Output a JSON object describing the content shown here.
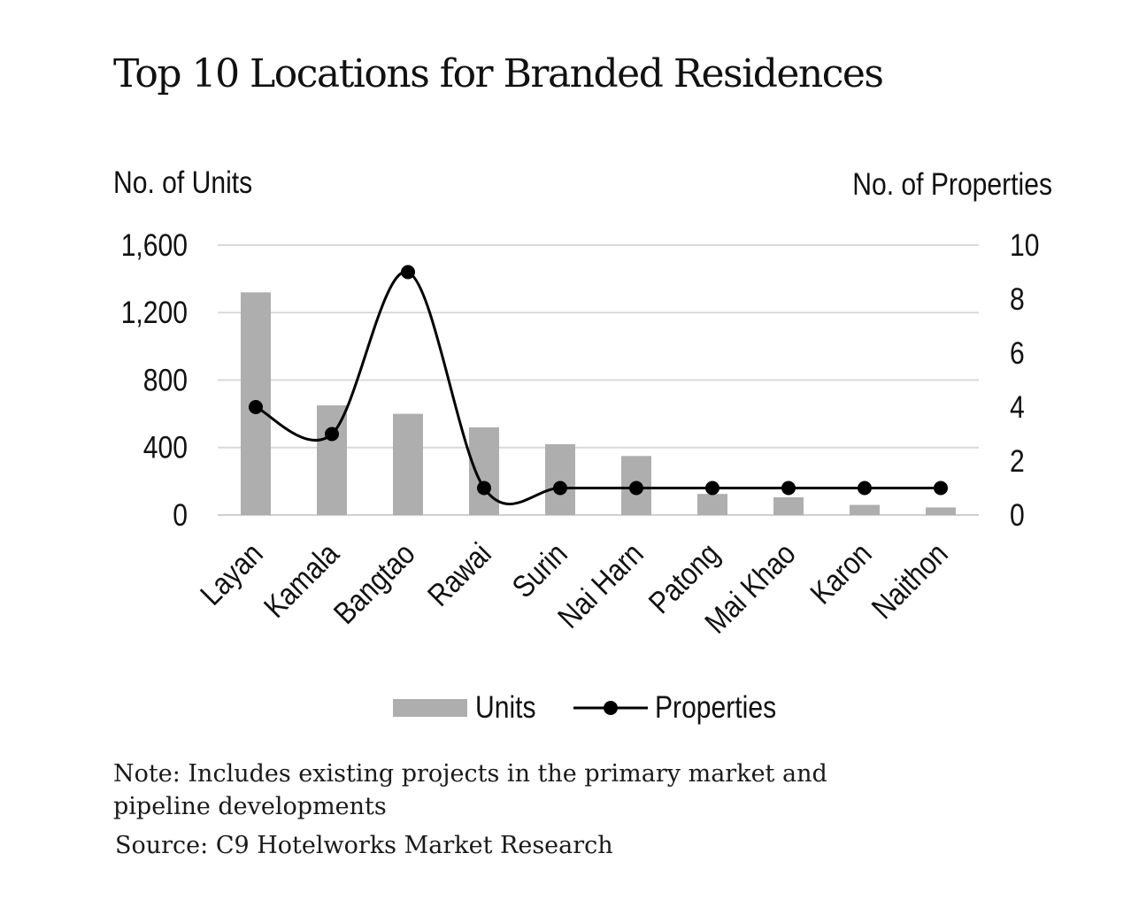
{
  "page": {
    "title": "Top 10 Locations for Branded Residences",
    "note": "Note: Includes existing projects in the primary market and pipeline developments",
    "source": "Source: C9 Hotelworks Market Research"
  },
  "colors": {
    "bar": "#aeaeae",
    "line": "#000000",
    "grid": "#d9d9d9",
    "text": "#111111"
  },
  "chart_data": {
    "type": "bar",
    "title": "Top 10 Locations for Branded Residences",
    "categories": [
      "Layan",
      "Kamala",
      "Bangtao",
      "Rawai",
      "Surin",
      "Nai Harn",
      "Patong",
      "Mai Khao",
      "Karon",
      "Naithon"
    ],
    "series": [
      {
        "name": "Units",
        "type": "bar",
        "axis": "left",
        "values": [
          1320,
          650,
          600,
          520,
          420,
          350,
          125,
          105,
          60,
          45
        ]
      },
      {
        "name": "Properties",
        "type": "line",
        "axis": "right",
        "smooth": true,
        "markers": true,
        "values": [
          4,
          3,
          9,
          1,
          1,
          1,
          1,
          1,
          1,
          1
        ]
      }
    ],
    "y_left": {
      "label": "No. of Units",
      "ticks": [
        "0",
        "400",
        "800",
        "1,200",
        "1,600"
      ],
      "tick_values": [
        0,
        400,
        800,
        1200,
        1600
      ],
      "ylim": [
        0,
        1600
      ]
    },
    "y_right": {
      "label": "No. of Properties",
      "ticks": [
        "0",
        "2",
        "4",
        "6",
        "8",
        "10"
      ],
      "tick_values": [
        0,
        2,
        4,
        6,
        8,
        10
      ],
      "ylim": [
        0,
        10
      ]
    },
    "grid": true,
    "legend": {
      "position": "bottom",
      "entries": [
        "Units",
        "Properties"
      ]
    }
  }
}
